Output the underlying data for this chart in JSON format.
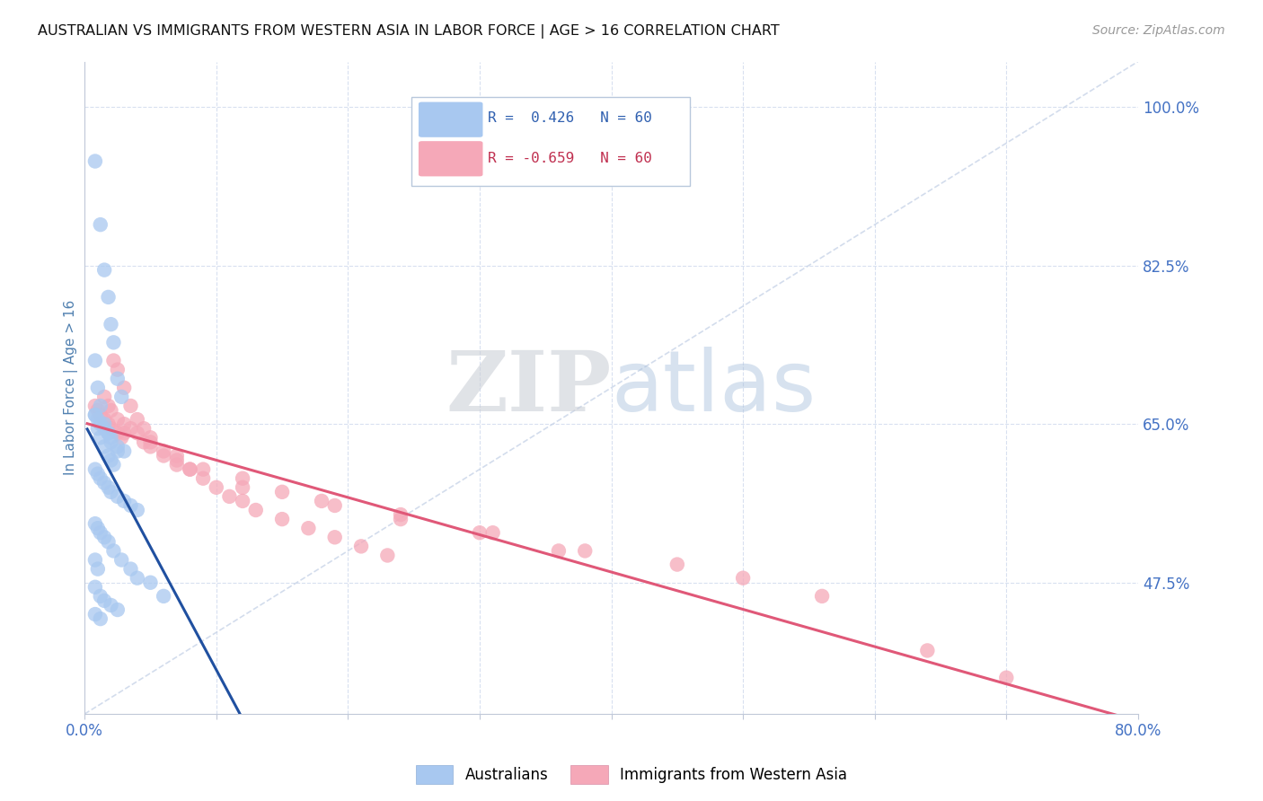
{
  "title": "AUSTRALIAN VS IMMIGRANTS FROM WESTERN ASIA IN LABOR FORCE | AGE > 16 CORRELATION CHART",
  "source": "Source: ZipAtlas.com",
  "ylabel": "In Labor Force | Age > 16",
  "xlim": [
    0.0,
    0.8
  ],
  "ylim": [
    0.33,
    1.05
  ],
  "yticks_right": [
    1.0,
    0.825,
    0.65,
    0.475
  ],
  "yticks_right_labels": [
    "100.0%",
    "82.5%",
    "65.0%",
    "47.5%"
  ],
  "blue_R": 0.426,
  "blue_N": 60,
  "pink_R": -0.659,
  "pink_N": 60,
  "blue_color": "#A8C8F0",
  "pink_color": "#F5A8B8",
  "blue_line_color": "#2050A0",
  "pink_line_color": "#E05878",
  "ref_line_color": "#C8D4E8",
  "blue_scatter_x": [
    0.008,
    0.012,
    0.015,
    0.018,
    0.02,
    0.022,
    0.025,
    0.028,
    0.008,
    0.01,
    0.012,
    0.015,
    0.018,
    0.02,
    0.025,
    0.008,
    0.01,
    0.012,
    0.015,
    0.018,
    0.02,
    0.022,
    0.008,
    0.01,
    0.012,
    0.015,
    0.018,
    0.02,
    0.025,
    0.03,
    0.008,
    0.01,
    0.012,
    0.015,
    0.018,
    0.02,
    0.025,
    0.03,
    0.035,
    0.04,
    0.008,
    0.01,
    0.012,
    0.015,
    0.018,
    0.022,
    0.028,
    0.035,
    0.05,
    0.06,
    0.008,
    0.01,
    0.04,
    0.008,
    0.012,
    0.015,
    0.02,
    0.025,
    0.008,
    0.012
  ],
  "blue_scatter_y": [
    0.94,
    0.87,
    0.82,
    0.79,
    0.76,
    0.74,
    0.7,
    0.68,
    0.72,
    0.69,
    0.67,
    0.65,
    0.64,
    0.63,
    0.62,
    0.66,
    0.645,
    0.635,
    0.625,
    0.615,
    0.61,
    0.605,
    0.66,
    0.655,
    0.65,
    0.645,
    0.64,
    0.635,
    0.625,
    0.62,
    0.6,
    0.595,
    0.59,
    0.585,
    0.58,
    0.575,
    0.57,
    0.565,
    0.56,
    0.555,
    0.54,
    0.535,
    0.53,
    0.525,
    0.52,
    0.51,
    0.5,
    0.49,
    0.475,
    0.46,
    0.5,
    0.49,
    0.48,
    0.47,
    0.46,
    0.455,
    0.45,
    0.445,
    0.44,
    0.435
  ],
  "pink_scatter_x": [
    0.008,
    0.01,
    0.012,
    0.015,
    0.018,
    0.02,
    0.025,
    0.028,
    0.015,
    0.018,
    0.02,
    0.025,
    0.03,
    0.035,
    0.04,
    0.045,
    0.05,
    0.06,
    0.07,
    0.08,
    0.022,
    0.025,
    0.03,
    0.035,
    0.04,
    0.045,
    0.05,
    0.06,
    0.07,
    0.08,
    0.09,
    0.1,
    0.11,
    0.12,
    0.13,
    0.15,
    0.17,
    0.19,
    0.21,
    0.23,
    0.03,
    0.05,
    0.07,
    0.09,
    0.12,
    0.15,
    0.19,
    0.24,
    0.3,
    0.36,
    0.12,
    0.18,
    0.24,
    0.31,
    0.38,
    0.45,
    0.5,
    0.56,
    0.64,
    0.7
  ],
  "pink_scatter_y": [
    0.67,
    0.665,
    0.66,
    0.655,
    0.65,
    0.645,
    0.64,
    0.635,
    0.68,
    0.67,
    0.665,
    0.655,
    0.65,
    0.645,
    0.64,
    0.63,
    0.625,
    0.615,
    0.605,
    0.6,
    0.72,
    0.71,
    0.69,
    0.67,
    0.655,
    0.645,
    0.635,
    0.62,
    0.61,
    0.6,
    0.59,
    0.58,
    0.57,
    0.565,
    0.555,
    0.545,
    0.535,
    0.525,
    0.515,
    0.505,
    0.64,
    0.63,
    0.615,
    0.6,
    0.59,
    0.575,
    0.56,
    0.545,
    0.53,
    0.51,
    0.58,
    0.565,
    0.55,
    0.53,
    0.51,
    0.495,
    0.48,
    0.46,
    0.4,
    0.37
  ]
}
